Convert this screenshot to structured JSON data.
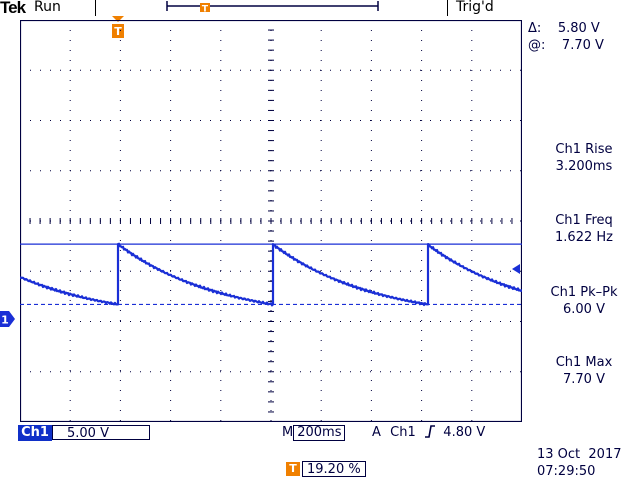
{
  "header": {
    "brand": "Tek",
    "acquisition_state": "Run",
    "trigger_state": "Trig'd"
  },
  "delta_readout": {
    "delta_label": "Δ:",
    "delta_value": "5.80 V",
    "at_label": "@:",
    "at_value": "7.70 V"
  },
  "measurements": [
    {
      "name": "Ch1 Rise",
      "value": "3.200ms"
    },
    {
      "name": "Ch1 Freq",
      "value": "1.622 Hz"
    },
    {
      "name": "Ch1 Pk–Pk",
      "value": "6.00 V"
    },
    {
      "name": "Ch1 Max",
      "value": "7.70 V"
    }
  ],
  "channel": {
    "label": "Ch1",
    "marker": "1",
    "volts_per_div": "5.00 V"
  },
  "timebase": {
    "prefix": "M",
    "value": "200ms"
  },
  "trigger": {
    "mode": "A",
    "source": "Ch1",
    "slope_icon": "rising-edge-icon",
    "level": "4.80 V",
    "marker": "T",
    "position": "19.20 %"
  },
  "datetime": {
    "date": "13 Oct  2017",
    "time": "07:29:50"
  },
  "colors": {
    "trace": "#1a2fd6",
    "cursor": "#1a2fd6",
    "trigger_marker": "#f08000",
    "grid": "#000040"
  },
  "waveform": {
    "period_s": 0.616,
    "max_v": 7.7,
    "min_v": 1.7,
    "rise_s": 0.0032,
    "ch1_ground_divisions_from_top": 6.0
  }
}
